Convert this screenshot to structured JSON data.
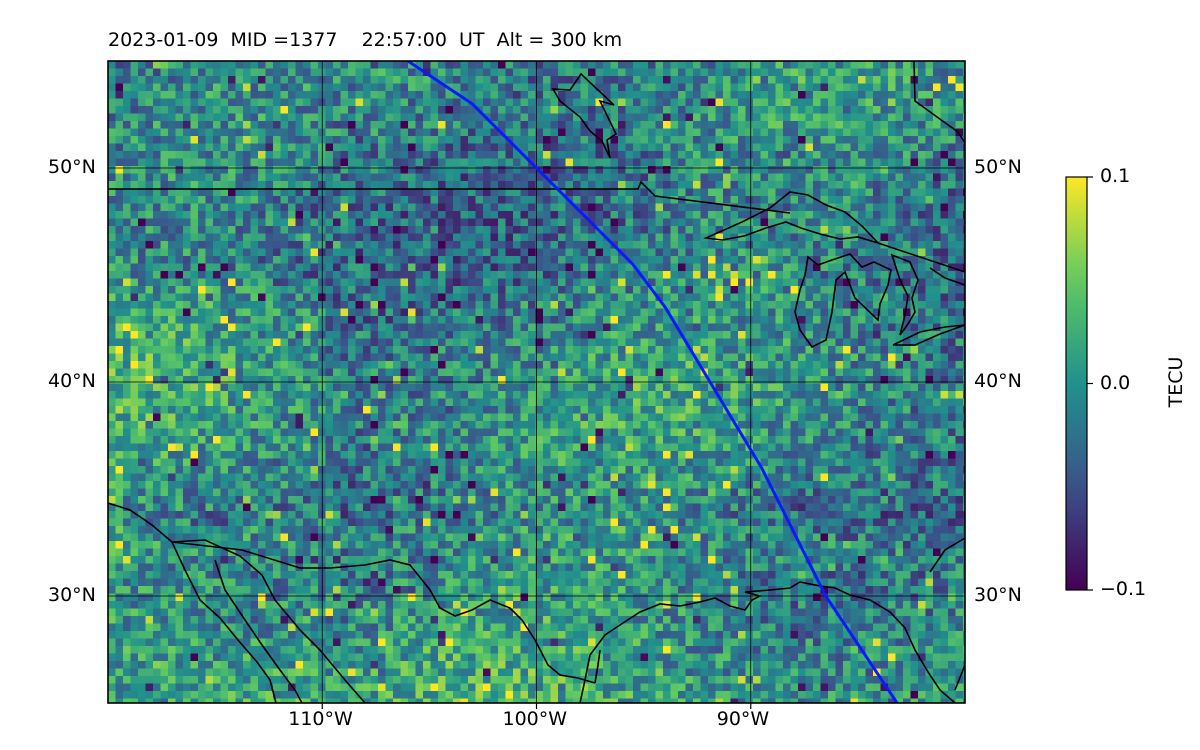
{
  "title": "2023-01-09  MID =1377    22:57:00  UT  Alt = 300 km",
  "map": {
    "lat_range": [
      25,
      55
    ],
    "lon_range": [
      -120,
      -80
    ],
    "lat_ticks": [
      {
        "value": 50,
        "label": "50°N"
      },
      {
        "value": 40,
        "label": "40°N"
      },
      {
        "value": 30,
        "label": "30°N"
      }
    ],
    "lon_ticks": [
      {
        "value": -110,
        "label": "110°W"
      },
      {
        "value": -100,
        "label": "100°W"
      },
      {
        "value": -90,
        "label": "90°W"
      }
    ],
    "grid": true,
    "track_color": "#0a1aff",
    "track": [
      [
        -106,
        55
      ],
      [
        -103,
        53
      ],
      [
        -100.5,
        50.5
      ],
      [
        -98,
        48
      ],
      [
        -95.5,
        45.5
      ],
      [
        -94,
        43.5
      ],
      [
        -92.5,
        41
      ],
      [
        -91,
        38.5
      ],
      [
        -89.5,
        36
      ],
      [
        -88,
        33
      ],
      [
        -86.5,
        30
      ],
      [
        -84.5,
        27
      ],
      [
        -82.5,
        24
      ]
    ]
  },
  "colorbar": {
    "label": "TECU",
    "min": -0.1,
    "max": 0.1,
    "ticks": [
      {
        "value": 0.1,
        "label": "0.1"
      },
      {
        "value": 0.0,
        "label": "0.0"
      },
      {
        "value": -0.1,
        "label": "−0.1"
      }
    ],
    "colormap": "viridis",
    "colors": [
      "#440154",
      "#3b528b",
      "#21918c",
      "#5ec962",
      "#fde725"
    ]
  }
}
